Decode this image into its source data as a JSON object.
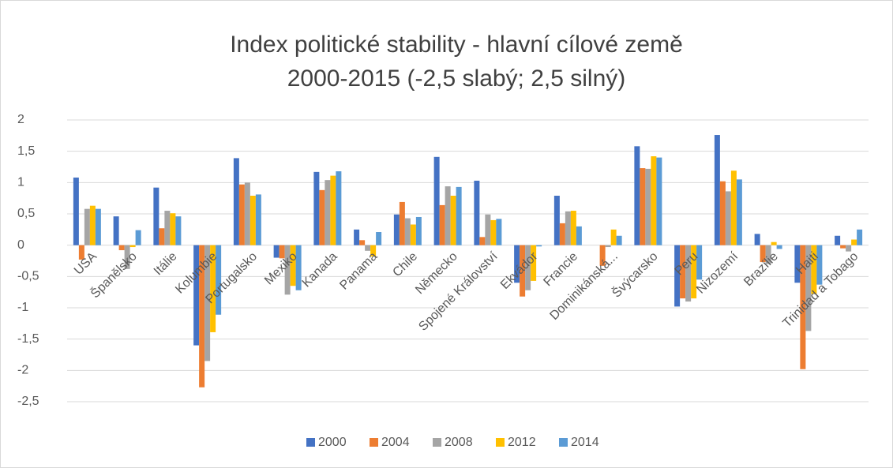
{
  "chart_data": {
    "type": "bar",
    "title": "Index politické stability - hlavní cílové země",
    "subtitle": "2000-2015 (-2,5 slabý; 2,5 silný)",
    "categories": [
      "USA",
      "Španělsko",
      "Itálie",
      "Kolumbie",
      "Portugalsko",
      "Mexiko",
      "Kanada",
      "Panama",
      "Chile",
      "Německo",
      "Spojené Království",
      "Ekvádor",
      "Francie",
      "Dominikánská...",
      "Švýcarsko",
      "Peru",
      "Nizozemí",
      "Brazílie",
      "Haiti",
      "Trinidad a Tobago"
    ],
    "series": [
      {
        "name": "2000",
        "color": "#4472c4",
        "values": [
          1.08,
          0.46,
          0.92,
          -1.6,
          1.39,
          -0.2,
          1.17,
          0.25,
          0.49,
          1.41,
          1.03,
          -0.6,
          0.79,
          0,
          1.58,
          -0.98,
          1.76,
          0.18,
          -0.6,
          0.15
        ]
      },
      {
        "name": "2004",
        "color": "#ed7d31",
        "values": [
          -0.23,
          -0.08,
          0.27,
          -2.27,
          0.97,
          -0.21,
          0.88,
          0.08,
          0.69,
          0.64,
          0.13,
          -0.82,
          0.35,
          -0.33,
          1.23,
          -0.85,
          1.02,
          -0.27,
          -1.98,
          -0.05
        ]
      },
      {
        "name": "2008",
        "color": "#a5a5a5",
        "values": [
          0.58,
          -0.38,
          0.55,
          -1.85,
          1.0,
          -0.79,
          1.04,
          -0.09,
          0.43,
          0.94,
          0.49,
          -0.72,
          0.54,
          -0.03,
          1.22,
          -0.9,
          0.86,
          -0.3,
          -1.37,
          -0.1
        ]
      },
      {
        "name": "2012",
        "color": "#ffc000",
        "values": [
          0.63,
          -0.03,
          0.51,
          -1.39,
          0.79,
          -0.65,
          1.11,
          -0.18,
          0.33,
          0.79,
          0.4,
          -0.57,
          0.55,
          0.25,
          1.42,
          -0.85,
          1.19,
          0.05,
          -0.78,
          0.09
        ]
      },
      {
        "name": "2014",
        "color": "#5b9bd5",
        "values": [
          0.58,
          0.24,
          0.46,
          -1.11,
          0.81,
          -0.72,
          1.18,
          0.21,
          0.45,
          0.93,
          0.42,
          -0.02,
          0.3,
          0.15,
          1.4,
          -0.55,
          1.05,
          -0.06,
          -0.63,
          0.25
        ]
      }
    ],
    "ylim": [
      -2.5,
      2
    ],
    "yticks": [
      2,
      {
        "value": 1.5,
        "label": "1,5"
      },
      1,
      {
        "value": 0.5,
        "label": "0,5"
      },
      0,
      {
        "value": -0.5,
        "label": "-0,5"
      },
      -1,
      {
        "value": -1.5,
        "label": "-1,5"
      },
      -2,
      {
        "value": -2.5,
        "label": "-2,5"
      }
    ],
    "grid": true,
    "legend": "bottom"
  }
}
